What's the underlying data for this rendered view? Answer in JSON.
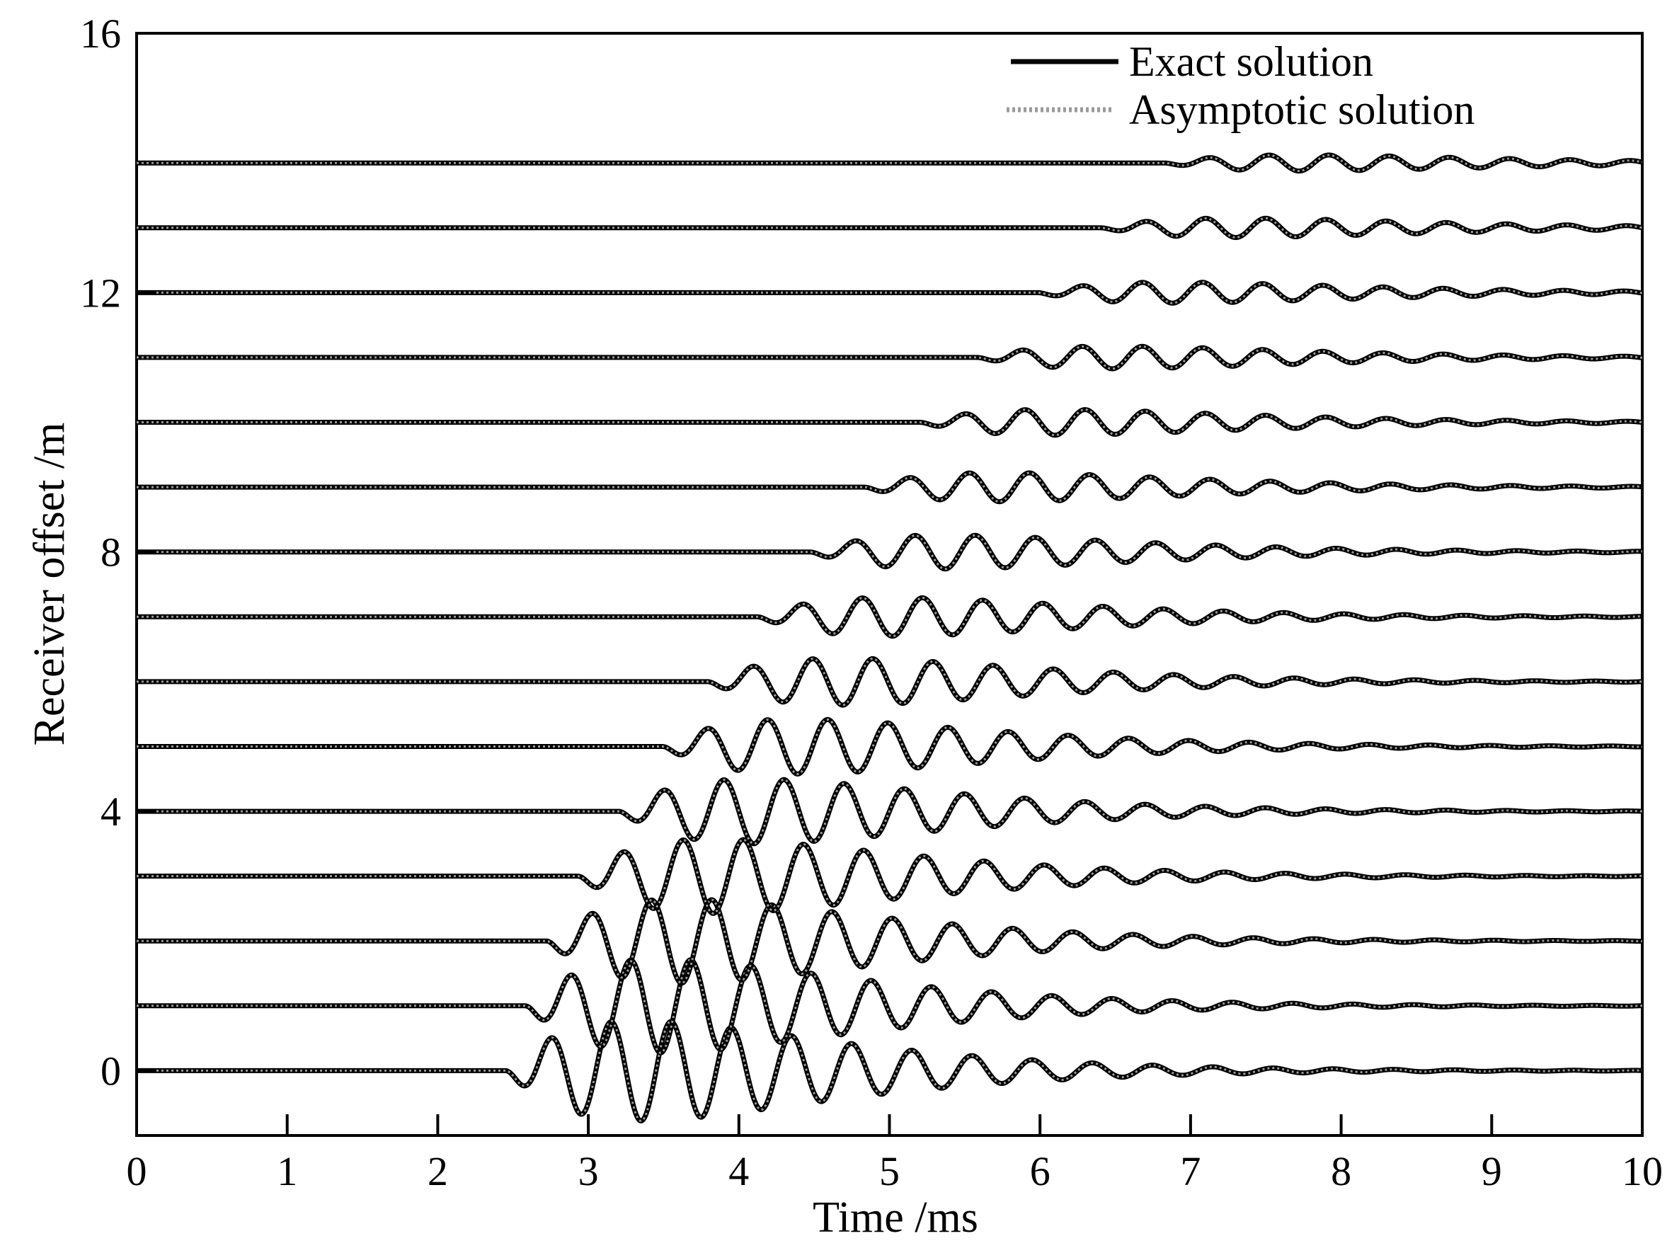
{
  "chart_data": {
    "type": "line",
    "title": "",
    "xlabel": "Time /ms",
    "ylabel": "Receiver offset /m",
    "xlim": [
      0,
      10
    ],
    "ylim": [
      -1,
      16
    ],
    "xticks": [
      "0",
      "1",
      "2",
      "3",
      "4",
      "5",
      "6",
      "7",
      "8",
      "9",
      "10"
    ],
    "yticks": [
      "0",
      "4",
      "8",
      "12",
      "16"
    ],
    "grid": false,
    "legend_position": "top-right",
    "series": [
      {
        "name": "Exact solution",
        "style": "solid",
        "color": "#000000"
      },
      {
        "name": "Asymptotic solution",
        "style": "dotted",
        "color": "#9a9a9a"
      }
    ],
    "traces": {
      "offsets_m": [
        0,
        1,
        2,
        3,
        4,
        5,
        6,
        7,
        8,
        9,
        10,
        11,
        12,
        13,
        14
      ],
      "onset_ms": [
        2.45,
        2.58,
        2.72,
        2.93,
        3.2,
        3.49,
        3.79,
        4.12,
        4.47,
        4.83,
        5.2,
        5.58,
        5.98,
        6.4,
        6.82
      ],
      "peak_amplitude_m": [
        0.62,
        0.58,
        0.52,
        0.46,
        0.4,
        0.34,
        0.29,
        0.24,
        0.21,
        0.18,
        0.16,
        0.14,
        0.13,
        0.12,
        0.1
      ]
    }
  }
}
